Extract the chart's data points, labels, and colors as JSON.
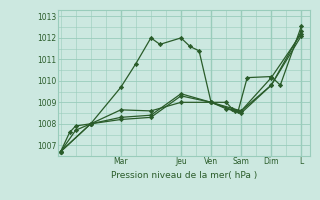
{
  "title": "",
  "xlabel": "Pression niveau de la mer( hPa )",
  "bg_color": "#cce8e0",
  "grid_color": "#99ccbb",
  "line_color": "#2a5c2a",
  "ylim": [
    1006.5,
    1013.3
  ],
  "xlim": [
    -0.1,
    8.3
  ],
  "yticks": [
    1007,
    1008,
    1009,
    1010,
    1011,
    1012,
    1013
  ],
  "day_labels": [
    "Mar",
    "Jeu",
    "Ven",
    "Sam",
    "Dim",
    "L"
  ],
  "day_tick_x": [
    2.0,
    4.0,
    5.0,
    6.0,
    7.0,
    8.0
  ],
  "series": [
    {
      "x": [
        0.0,
        0.3,
        0.5,
        1.0,
        2.0,
        2.5,
        3.0,
        3.3,
        4.0,
        4.3,
        4.6,
        5.0,
        5.5,
        5.7,
        5.9,
        6.2,
        7.0,
        7.3,
        8.0
      ],
      "y": [
        1006.7,
        1007.6,
        1007.9,
        1008.0,
        1009.7,
        1010.8,
        1012.0,
        1011.7,
        1012.0,
        1011.6,
        1011.4,
        1009.0,
        1009.0,
        1008.7,
        1008.6,
        1010.15,
        1010.2,
        1009.8,
        1012.55
      ]
    },
    {
      "x": [
        0.0,
        0.5,
        1.0,
        2.0,
        3.0,
        4.0,
        5.0,
        5.5,
        5.8,
        6.0,
        7.0,
        8.0
      ],
      "y": [
        1006.7,
        1007.7,
        1008.0,
        1008.65,
        1008.6,
        1009.0,
        1009.0,
        1008.7,
        1008.6,
        1008.6,
        1009.8,
        1012.3
      ]
    },
    {
      "x": [
        0.0,
        1.0,
        2.0,
        3.0,
        4.0,
        5.0,
        6.0,
        7.0,
        8.0
      ],
      "y": [
        1006.7,
        1008.0,
        1008.3,
        1008.4,
        1009.4,
        1009.0,
        1008.6,
        1010.15,
        1012.2
      ]
    },
    {
      "x": [
        0.0,
        1.0,
        2.0,
        3.0,
        4.0,
        5.0,
        6.0,
        7.0,
        8.0
      ],
      "y": [
        1006.7,
        1008.0,
        1008.2,
        1008.3,
        1009.3,
        1009.0,
        1008.5,
        1009.8,
        1012.1
      ]
    }
  ],
  "marker": "D",
  "marker_size": 2.2,
  "line_width": 0.9,
  "font_size_tick": 5.5,
  "font_size_xlabel": 6.5
}
